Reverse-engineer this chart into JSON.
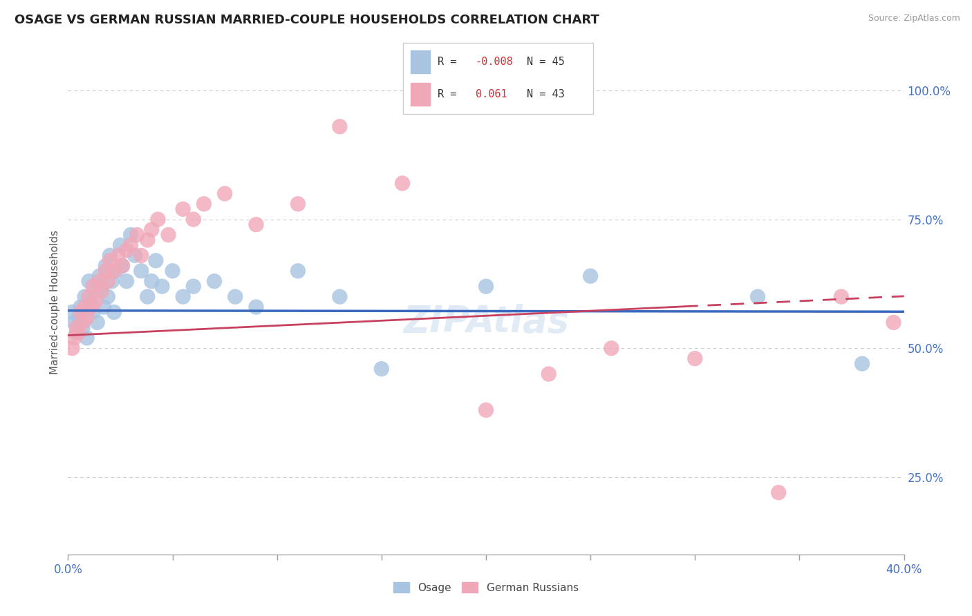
{
  "title": "OSAGE VS GERMAN RUSSIAN MARRIED-COUPLE HOUSEHOLDS CORRELATION CHART",
  "source_text": "Source: ZipAtlas.com",
  "ylabel": "Married-couple Households",
  "right_ytick_vals": [
    0.25,
    0.5,
    0.75,
    1.0
  ],
  "right_ytick_labels": [
    "25.0%",
    "50.0%",
    "75.0%",
    "100.0%"
  ],
  "xlim": [
    0.0,
    0.4
  ],
  "ylim": [
    0.1,
    1.08
  ],
  "osage_color": "#a8c4e0",
  "german_color": "#f0a8b8",
  "trend_osage_color": "#3a6abf",
  "trend_german_color": "#c84060",
  "osage_r": -0.008,
  "osage_n": 45,
  "german_r": 0.061,
  "german_n": 43,
  "bottom_legend1": "Osage",
  "bottom_legend2": "German Russians",
  "watermark": "ZIPAtlas",
  "osage_x": [
    0.002,
    0.003,
    0.004,
    0.005,
    0.006,
    0.007,
    0.008,
    0.009,
    0.01,
    0.011,
    0.012,
    0.013,
    0.014,
    0.015,
    0.016,
    0.017,
    0.018,
    0.019,
    0.02,
    0.021,
    0.022,
    0.023,
    0.025,
    0.026,
    0.028,
    0.03,
    0.032,
    0.035,
    0.038,
    0.04,
    0.042,
    0.045,
    0.05,
    0.055,
    0.06,
    0.07,
    0.08,
    0.09,
    0.11,
    0.13,
    0.15,
    0.2,
    0.25,
    0.33,
    0.38
  ],
  "osage_y": [
    0.57,
    0.55,
    0.53,
    0.56,
    0.58,
    0.54,
    0.6,
    0.52,
    0.63,
    0.59,
    0.57,
    0.61,
    0.55,
    0.64,
    0.62,
    0.58,
    0.66,
    0.6,
    0.68,
    0.63,
    0.57,
    0.65,
    0.7,
    0.66,
    0.63,
    0.72,
    0.68,
    0.65,
    0.6,
    0.63,
    0.67,
    0.62,
    0.65,
    0.6,
    0.62,
    0.63,
    0.6,
    0.58,
    0.65,
    0.6,
    0.46,
    0.62,
    0.64,
    0.6,
    0.47
  ],
  "german_x": [
    0.002,
    0.003,
    0.004,
    0.005,
    0.006,
    0.007,
    0.008,
    0.009,
    0.01,
    0.011,
    0.012,
    0.013,
    0.015,
    0.016,
    0.018,
    0.019,
    0.02,
    0.022,
    0.024,
    0.026,
    0.028,
    0.03,
    0.033,
    0.035,
    0.038,
    0.04,
    0.043,
    0.048,
    0.055,
    0.06,
    0.065,
    0.075,
    0.09,
    0.11,
    0.13,
    0.16,
    0.2,
    0.23,
    0.26,
    0.3,
    0.34,
    0.37,
    0.395
  ],
  "german_y": [
    0.5,
    0.52,
    0.54,
    0.53,
    0.57,
    0.55,
    0.58,
    0.56,
    0.6,
    0.58,
    0.62,
    0.59,
    0.63,
    0.61,
    0.65,
    0.63,
    0.67,
    0.65,
    0.68,
    0.66,
    0.69,
    0.7,
    0.72,
    0.68,
    0.71,
    0.73,
    0.75,
    0.72,
    0.77,
    0.75,
    0.78,
    0.8,
    0.74,
    0.78,
    0.93,
    0.82,
    0.38,
    0.45,
    0.5,
    0.48,
    0.22,
    0.6,
    0.55
  ]
}
